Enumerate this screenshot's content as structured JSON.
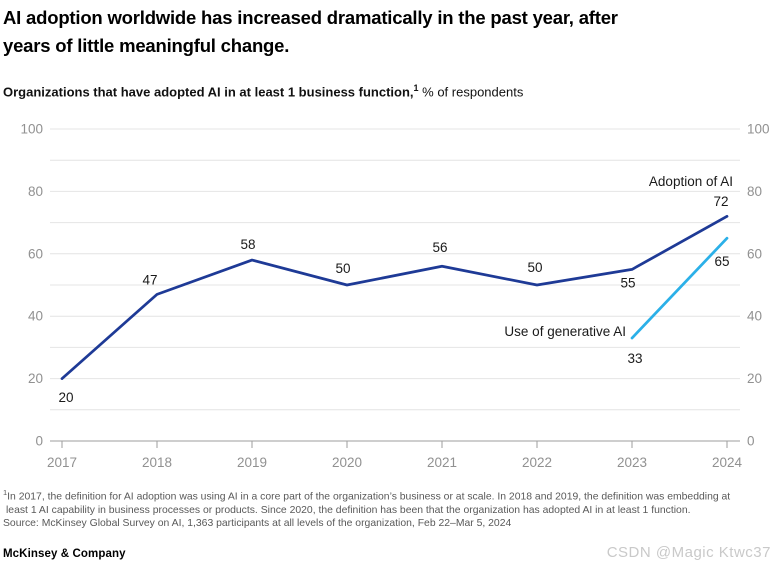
{
  "header": {
    "title_line1": "AI adoption worldwide has increased dramatically in the past year, after",
    "title_line2": "years of little meaningful change.",
    "subtitle_bold": "Organizations that have adopted AI in at least 1 business function,",
    "subtitle_sup": "1",
    "subtitle_rest": " % of respondents"
  },
  "chart_data": {
    "type": "line",
    "x": [
      "2017",
      "2018",
      "2019",
      "2020",
      "2021",
      "2022",
      "2023",
      "2024"
    ],
    "series": [
      {
        "name": "Adoption of AI",
        "color": "#1e3a96",
        "values": [
          20,
          47,
          58,
          50,
          56,
          50,
          55,
          72
        ]
      },
      {
        "name": "Use of generative AI",
        "color": "#2bb0e8",
        "values": [
          null,
          null,
          null,
          null,
          null,
          null,
          33,
          65
        ]
      }
    ],
    "ylim": [
      0,
      100
    ],
    "y_grid_step": 10,
    "y_label_step": 20,
    "y_axis_sides": "both",
    "grid": "horizontal",
    "legend_position": "inline-annotations",
    "axis_label_color": "#919191",
    "grid_color": "#e4e4e4",
    "baseline_color": "#9e9e9e",
    "data_label_color": "#1a1a1a"
  },
  "footnote": {
    "sup": "1",
    "line1": "In 2017, the definition for AI adoption was using AI in a core part of the organization’s business or at scale. In 2018 and 2019, the definition was embedding at",
    "line2": "least 1 AI capability in business processes or products. Since 2020, the definition has been that the organization has adopted AI in at least 1 function.",
    "source": "Source: McKinsey Global Survey on AI, 1,363 participants at all levels of the organization, Feb 22–Mar 5, 2024"
  },
  "footer": {
    "brand": "McKinsey & Company"
  },
  "watermark": "CSDN @Magic Ktwc37"
}
